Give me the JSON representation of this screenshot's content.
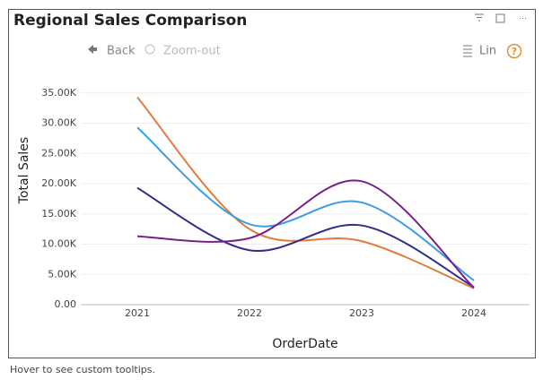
{
  "chart_data": {
    "type": "line",
    "title": "Regional Sales Comparison",
    "x_label": "OrderDate",
    "y_label": "Total Sales",
    "categories": [
      "2021",
      "2022",
      "2023",
      "2024"
    ],
    "series": [
      {
        "color": "#e07b3c",
        "values": [
          34300,
          12500,
          10500,
          2700
        ]
      },
      {
        "color": "#3a9ee4",
        "values": [
          29300,
          13300,
          16900,
          4000
        ]
      },
      {
        "color": "#2f2f8c",
        "values": [
          19300,
          9000,
          13100,
          2900
        ]
      },
      {
        "color": "#7a1e8e",
        "values": [
          11300,
          11000,
          20400,
          2800
        ]
      }
    ],
    "ylim": [
      0,
      40000
    ],
    "yticks": [
      {
        "value": 0,
        "label": "0.00"
      },
      {
        "value": 5000,
        "label": "5.00K"
      },
      {
        "value": 10000,
        "label": "10.00K"
      },
      {
        "value": 15000,
        "label": "15.00K"
      },
      {
        "value": 20000,
        "label": "20.00K"
      },
      {
        "value": 25000,
        "label": "25.00K"
      },
      {
        "value": 30000,
        "label": "30.00K"
      },
      {
        "value": 35000,
        "label": "35.00K"
      }
    ],
    "grid": true
  },
  "toolbar": {
    "back": "Back",
    "zoom_out": "Zoom-out",
    "scale": "Lin",
    "help": "?"
  },
  "footer": "Hover to see custom tooltips."
}
